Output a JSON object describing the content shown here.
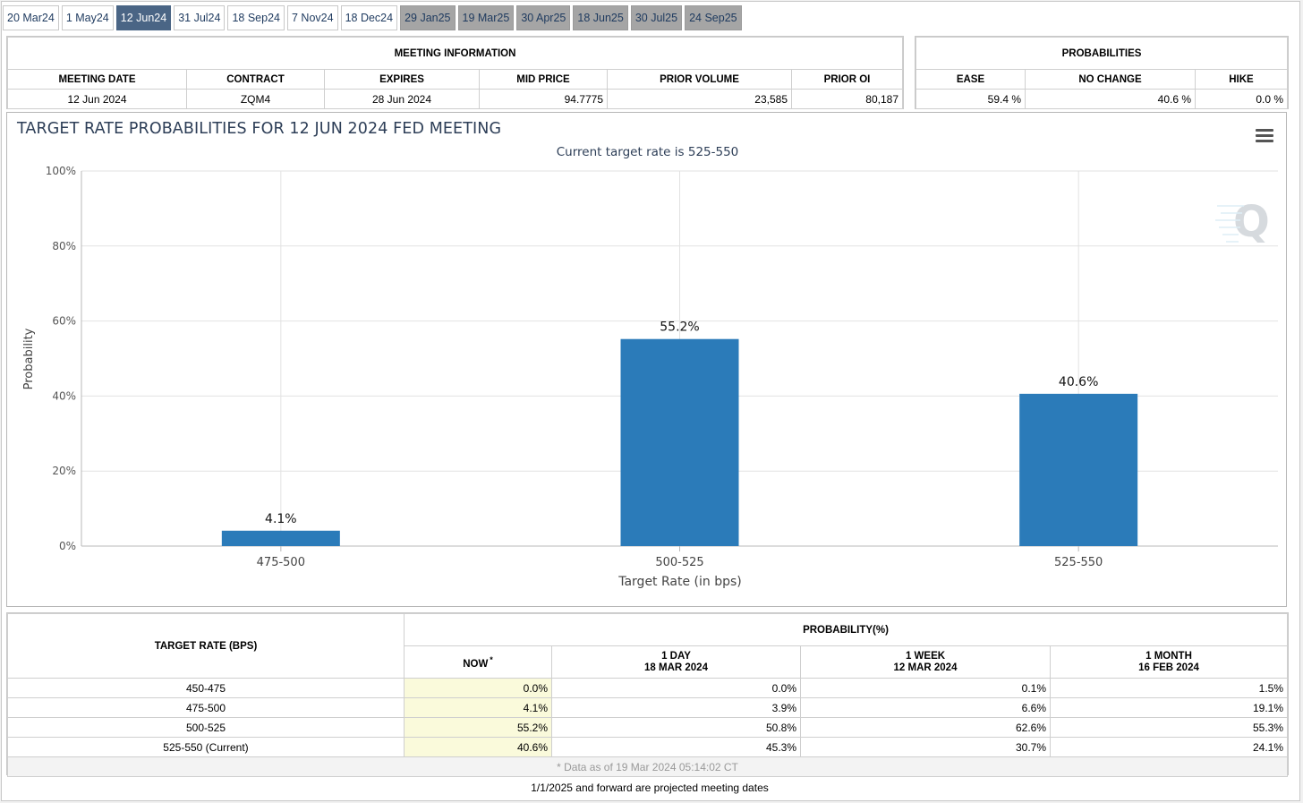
{
  "tabs": [
    {
      "label": "20 Mar24",
      "state": "normal"
    },
    {
      "label": "1 May24",
      "state": "normal"
    },
    {
      "label": "12 Jun24",
      "state": "active"
    },
    {
      "label": "31 Jul24",
      "state": "normal"
    },
    {
      "label": "18 Sep24",
      "state": "normal"
    },
    {
      "label": "7 Nov24",
      "state": "normal"
    },
    {
      "label": "18 Dec24",
      "state": "normal"
    },
    {
      "label": "29 Jan25",
      "state": "projected"
    },
    {
      "label": "19 Mar25",
      "state": "projected"
    },
    {
      "label": "30 Apr25",
      "state": "projected"
    },
    {
      "label": "18 Jun25",
      "state": "projected"
    },
    {
      "label": "30 Jul25",
      "state": "projected"
    },
    {
      "label": "24 Sep25",
      "state": "projected"
    }
  ],
  "meeting_info": {
    "title": "MEETING INFORMATION",
    "headers": [
      "MEETING DATE",
      "CONTRACT",
      "EXPIRES",
      "MID PRICE",
      "PRIOR VOLUME",
      "PRIOR OI"
    ],
    "values": [
      "12 Jun 2024",
      "ZQM4",
      "28 Jun 2024",
      "94.7775",
      "23,585",
      "80,187"
    ]
  },
  "probabilities": {
    "title": "PROBABILITIES",
    "headers": [
      "EASE",
      "NO CHANGE",
      "HIKE"
    ],
    "values": [
      "59.4 %",
      "40.6 %",
      "0.0 %"
    ]
  },
  "chart_data": {
    "type": "bar",
    "title": "TARGET RATE PROBABILITIES FOR 12 JUN 2024 FED MEETING",
    "subtitle": "Current target rate is 525-550",
    "xlabel": "Target Rate (in bps)",
    "ylabel": "Probability",
    "categories": [
      "475-500",
      "500-525",
      "525-550"
    ],
    "values": [
      4.1,
      55.2,
      40.6
    ],
    "data_labels": [
      "4.1%",
      "55.2%",
      "40.6%"
    ],
    "ylim": [
      0,
      100
    ],
    "yticks": [
      "0%",
      "20%",
      "40%",
      "60%",
      "80%",
      "100%"
    ],
    "ytick_values": [
      0,
      20,
      40,
      60,
      80,
      100
    ],
    "grid": true,
    "legend": "none",
    "bar_color": "#2b7bb9",
    "title_color": "#2d3e57"
  },
  "chart_menu_icon": "hamburger-menu-icon",
  "watermark_icon": "q-logo-icon",
  "prob_table": {
    "target_rate_header": "TARGET RATE (BPS)",
    "probability_header": "PROBABILITY(%)",
    "now_label": "NOW",
    "now_marker": "*",
    "col_day_label": "1 DAY",
    "col_day_date": "18 MAR 2024",
    "col_week_label": "1 WEEK",
    "col_week_date": "12 MAR 2024",
    "col_month_label": "1 MONTH",
    "col_month_date": "16 FEB 2024",
    "rows": [
      {
        "rate": "450-475",
        "now": "0.0%",
        "day": "0.0%",
        "week": "0.1%",
        "month": "1.5%"
      },
      {
        "rate": "475-500",
        "now": "4.1%",
        "day": "3.9%",
        "week": "6.6%",
        "month": "19.1%"
      },
      {
        "rate": "500-525",
        "now": "55.2%",
        "day": "50.8%",
        "week": "62.6%",
        "month": "55.3%"
      },
      {
        "rate": "525-550 (Current)",
        "now": "40.6%",
        "day": "45.3%",
        "week": "30.7%",
        "month": "24.1%"
      }
    ],
    "footnote": "* Data as of 19 Mar 2024 05:14:02 CT"
  },
  "bottom_note": "1/1/2025 and forward are projected meeting dates"
}
